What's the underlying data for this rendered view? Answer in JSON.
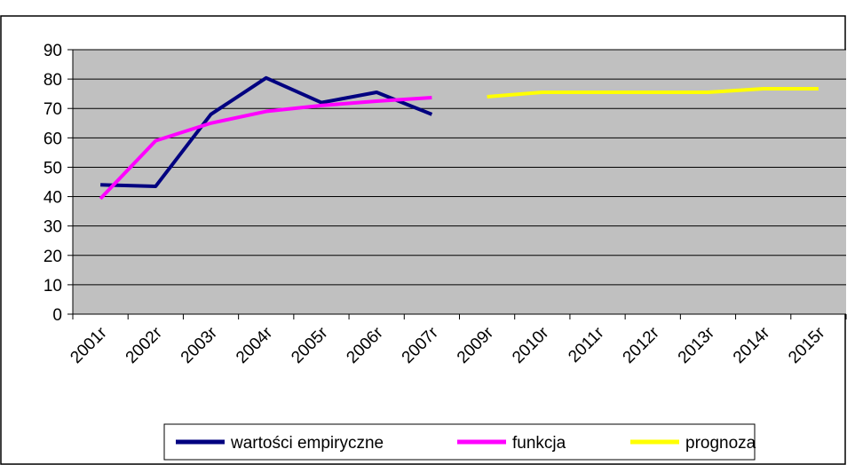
{
  "chart_data": {
    "type": "line",
    "categories": [
      "2001r",
      "2002r",
      "2003r",
      "2004r",
      "2005r",
      "2006r",
      "2007r",
      "2009r",
      "2010r",
      "2011r",
      "2012r",
      "2013r",
      "2014r",
      "2015r"
    ],
    "series": [
      {
        "name": "wartości empiryczne",
        "color": "#000080",
        "values": [
          44,
          43.5,
          68,
          80.4,
          72,
          75.5,
          68,
          null,
          null,
          null,
          null,
          null,
          null,
          null
        ]
      },
      {
        "name": "funkcja",
        "color": "#ff00ff",
        "values": [
          39.3,
          59,
          65,
          69,
          71,
          72.5,
          73.7,
          null,
          null,
          null,
          null,
          null,
          null,
          null
        ]
      },
      {
        "name": "prognoza",
        "color": "#ffff00",
        "values": [
          null,
          null,
          null,
          null,
          null,
          null,
          null,
          74,
          75.5,
          75.5,
          75.5,
          75.5,
          76.7,
          76.7
        ]
      }
    ],
    "ylim": [
      0,
      90
    ],
    "yticks": [
      0,
      10,
      20,
      30,
      40,
      50,
      60,
      70,
      80,
      90
    ],
    "grid": true,
    "legend": "bottom"
  }
}
